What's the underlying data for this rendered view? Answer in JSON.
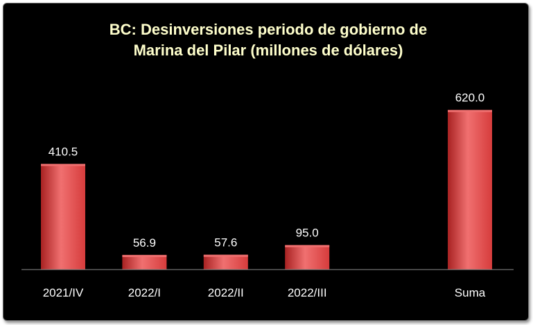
{
  "chart_data": {
    "type": "bar",
    "title_lines": [
      "BC: Desinversiones periodo de gobierno de",
      "Marina del Pilar (millones de dólares)"
    ],
    "categories": [
      "2021/IV",
      "2022/I",
      "2022/II",
      "2022/III",
      "",
      "Suma"
    ],
    "values": [
      410.5,
      56.9,
      57.6,
      95.0,
      null,
      620.0
    ],
    "data_labels": [
      "410.5",
      "56.9",
      "57.6",
      "95.0",
      "",
      "620.0"
    ],
    "xlabel": "",
    "ylabel": "",
    "ylim": [
      0,
      700
    ],
    "grid": false,
    "legend": "none",
    "colors": {
      "background": "#000000",
      "bar": "#d63c3c",
      "bar_light": "#f07070",
      "bar_dark": "#a82222",
      "title": "#ffffcc",
      "text": "#ffffff",
      "axis": "#8c8c8c"
    }
  }
}
